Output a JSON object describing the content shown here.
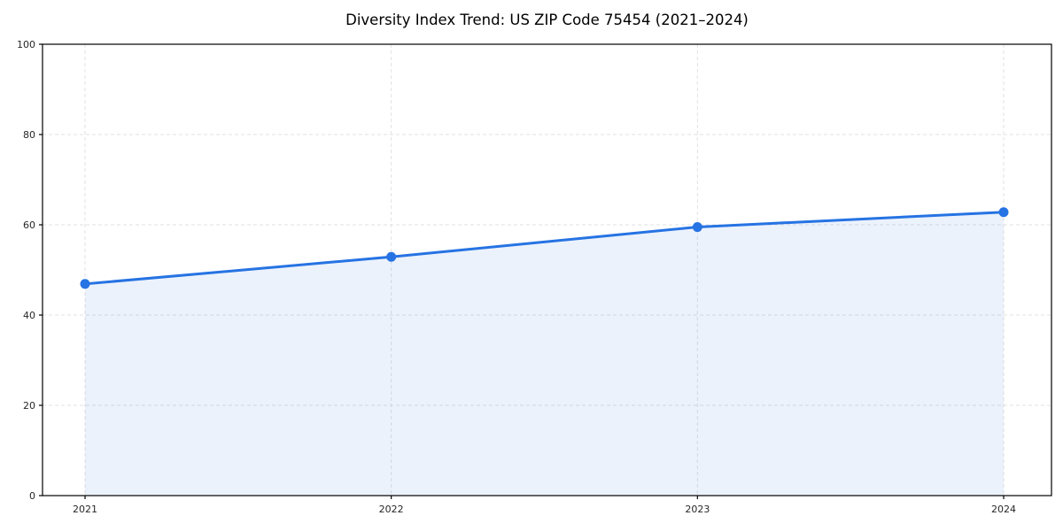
{
  "chart_data": {
    "type": "area",
    "title": "Diversity Index Trend: US ZIP Code 75454 (2021–2024)",
    "categories": [
      "2021",
      "2022",
      "2023",
      "2024"
    ],
    "series": [
      {
        "name": "Diversity Index",
        "values": [
          46.9,
          52.9,
          59.5,
          62.8
        ]
      }
    ],
    "xlabel": "",
    "ylabel": "",
    "ylim": [
      0,
      100
    ],
    "yticks": [
      0,
      20,
      40,
      60,
      80,
      100
    ],
    "grid": "dashed, both axes",
    "legend_position": "none",
    "colors": {
      "line": "#2673e3",
      "marker": "#2673e3",
      "fill": "#2673e3",
      "fill_opacity": "0.09",
      "grid": "#e2e2e2",
      "axis": "#000000",
      "tick_text": "#262626",
      "title_text": "#000000",
      "background": "#ffffff"
    }
  }
}
